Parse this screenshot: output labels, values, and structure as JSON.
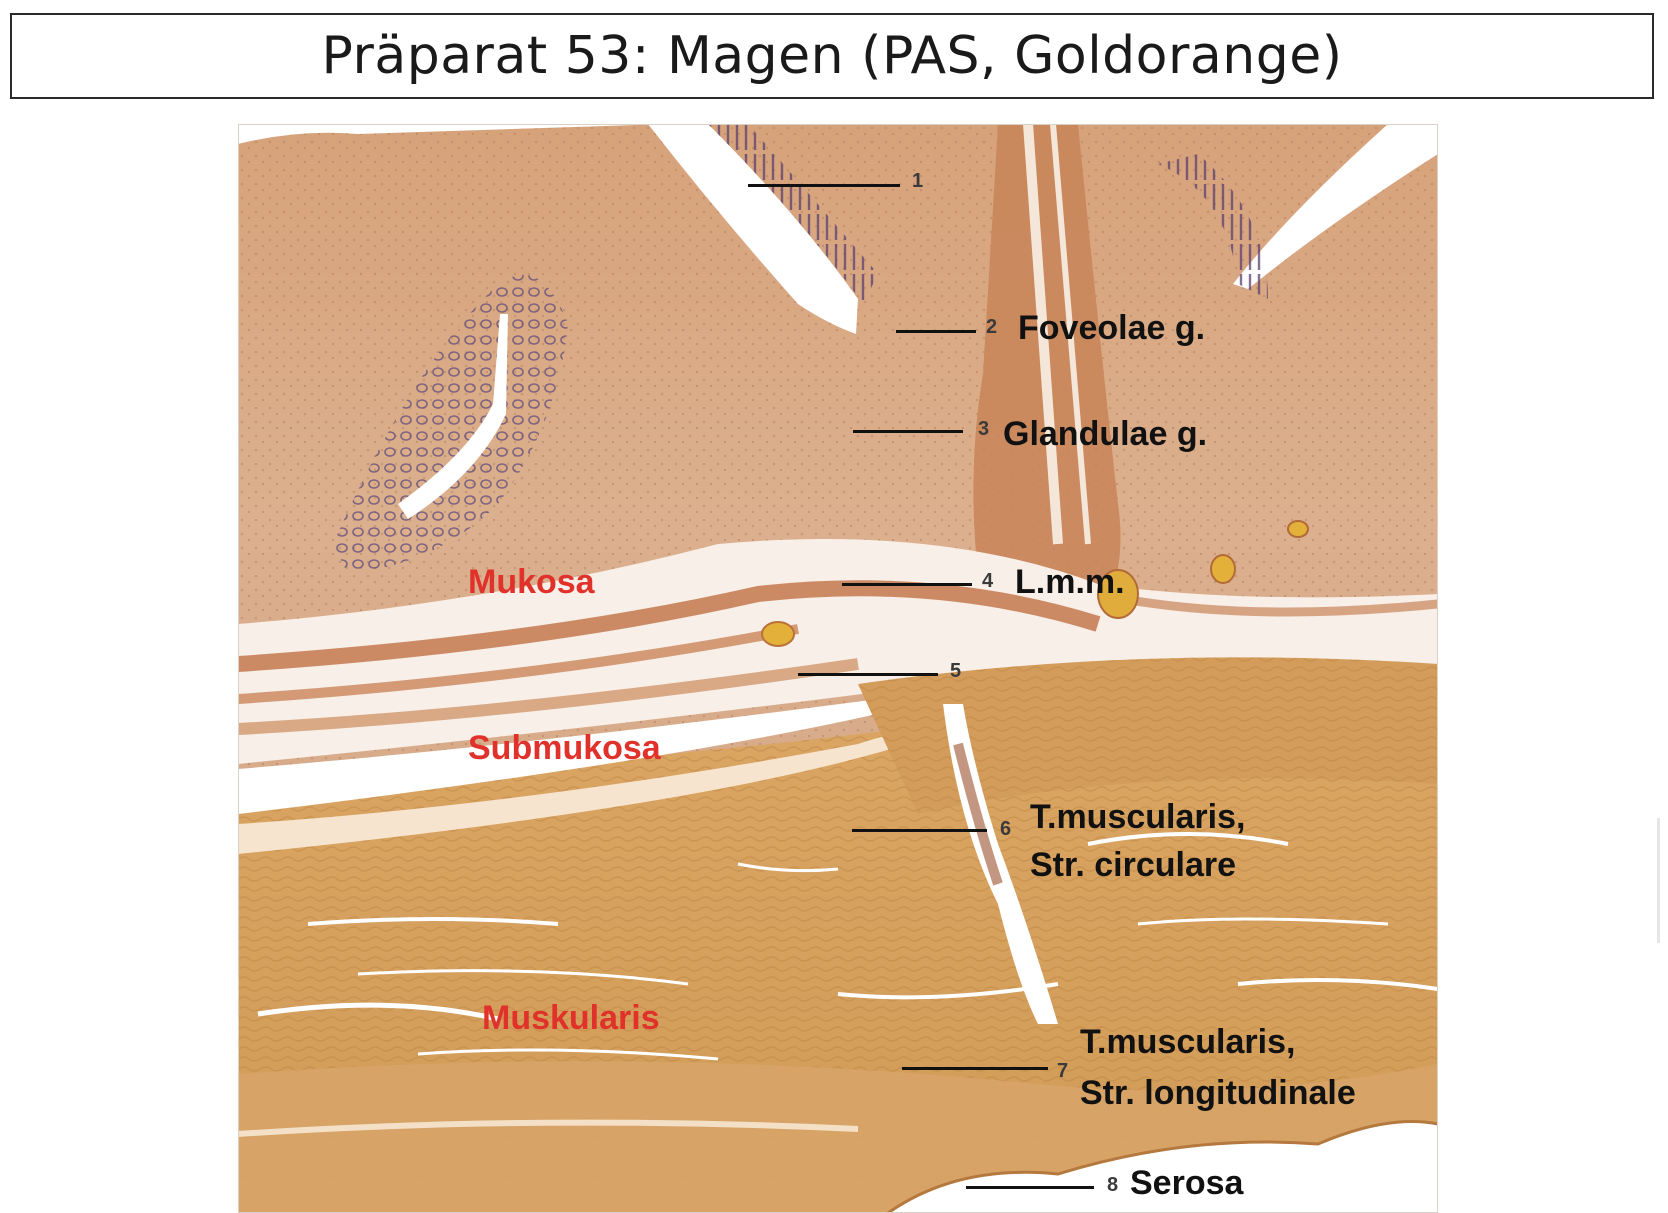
{
  "title": "Präparat 53: Magen (PAS, Goldorange)",
  "regions": {
    "mukosa": "Mukosa",
    "submukosa": "Submukosa",
    "muskularis": "Muskularis"
  },
  "markers": [
    {
      "number": "1",
      "label": ""
    },
    {
      "number": "2",
      "label": "Foveolae g."
    },
    {
      "number": "3",
      "label": "Glandulae g."
    },
    {
      "number": "4",
      "label": "L.m.m."
    },
    {
      "number": "5",
      "label": ""
    },
    {
      "number": "6",
      "label_line1": "T.muscularis,",
      "label_line2": "Str. circulare"
    },
    {
      "number": "7",
      "label_line1": "T.muscularis,",
      "label_line2": "Str. longitudinale"
    },
    {
      "number": "8",
      "label": "Serosa"
    }
  ],
  "colors": {
    "region_label": "#e0312a",
    "mucosa_tissue": "#d9a67f",
    "muscularis_tissue": "#d8a25c",
    "pit_epithelium": "#6a4a8a"
  },
  "micrograph": {
    "icon": "stomach-wall-histology-image"
  }
}
